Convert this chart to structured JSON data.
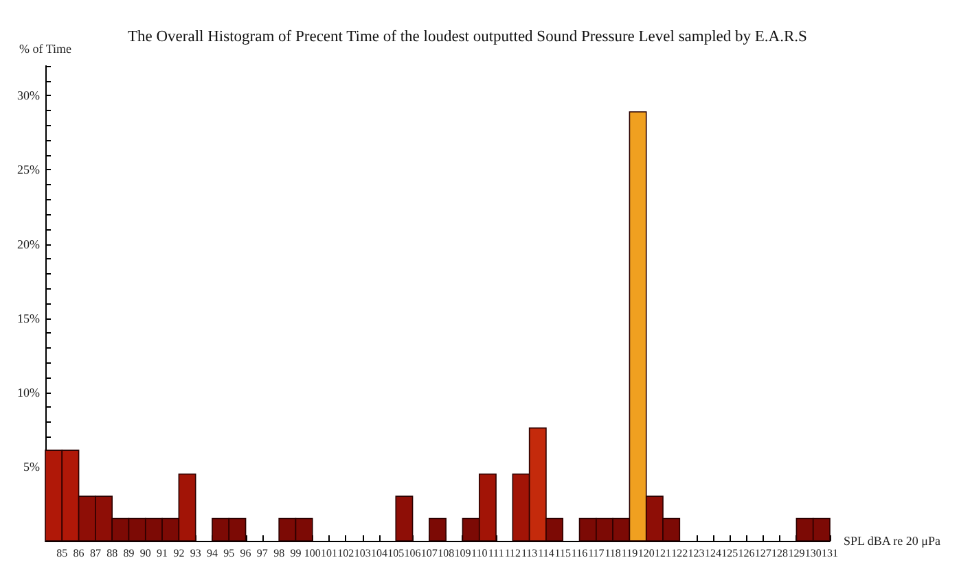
{
  "chart_data": {
    "type": "histogram",
    "title": "The Overall Histogram of Precent Time of the loudest outputted Sound Pressure Level sampled by E.A.R.S",
    "xlabel": "SPL dBA re 20 μPa",
    "ylabel": "% of Time",
    "bins": [
      84,
      85,
      86,
      87,
      88,
      89,
      90,
      91,
      92,
      93,
      94,
      95,
      96,
      97,
      98,
      99,
      100,
      101,
      102,
      103,
      104,
      105,
      106,
      107,
      108,
      109,
      110,
      111,
      112,
      113,
      114,
      115,
      116,
      117,
      118,
      119,
      120,
      121,
      122,
      123,
      124,
      125,
      126,
      127,
      128,
      129,
      130,
      131
    ],
    "values": [
      6.1,
      6.1,
      3,
      3,
      1.5,
      1.5,
      1.5,
      1.5,
      4.5,
      0,
      1.5,
      1.5,
      0,
      0,
      1.5,
      1.5,
      0,
      0,
      0,
      0,
      0,
      3,
      0,
      1.5,
      0,
      1.5,
      4.5,
      0,
      4.5,
      7.6,
      1.5,
      0,
      1.5,
      1.5,
      1.5,
      28.9,
      3,
      1.5,
      0,
      0,
      0,
      0,
      0,
      0,
      0,
      1.5,
      1.5
    ],
    "colors": [
      "#b01808",
      "#b01808",
      "#8e0e06",
      "#8e0e06",
      "#7c0a05",
      "#7c0a05",
      "#7c0a05",
      "#7c0a05",
      "#a21406",
      null,
      "#7c0a05",
      "#7c0a05",
      null,
      null,
      "#7c0a05",
      "#7c0a05",
      null,
      null,
      null,
      null,
      null,
      "#8e0e06",
      null,
      "#7c0a05",
      null,
      "#7c0a05",
      "#a21406",
      null,
      "#a21406",
      "#c42a0c",
      "#7c0a05",
      null,
      "#7c0a05",
      "#7c0a05",
      "#7c0a05",
      "#f0a020",
      "#8e0e06",
      "#7c0a05",
      null,
      null,
      null,
      null,
      null,
      null,
      null,
      "#7c0a05",
      "#7c0a05"
    ],
    "xlim": [
      84,
      131
    ],
    "xticks": [
      85,
      86,
      87,
      88,
      89,
      90,
      91,
      92,
      93,
      94,
      95,
      96,
      97,
      98,
      99,
      100,
      101,
      102,
      103,
      104,
      105,
      106,
      107,
      108,
      109,
      110,
      111,
      112,
      113,
      114,
      115,
      116,
      117,
      118,
      119,
      120,
      121,
      122,
      123,
      124,
      125,
      126,
      127,
      128,
      129,
      130,
      131
    ],
    "ylim": [
      0,
      32
    ],
    "yticks": [
      {
        "value": 0,
        "label": null
      },
      {
        "value": 1,
        "label": null
      },
      {
        "value": 2,
        "label": null
      },
      {
        "value": 3,
        "label": null
      },
      {
        "value": 4,
        "label": null
      },
      {
        "value": 5,
        "label": "5%"
      },
      {
        "value": 6,
        "label": null
      },
      {
        "value": 7,
        "label": null
      },
      {
        "value": 8,
        "label": null
      },
      {
        "value": 9,
        "label": null
      },
      {
        "value": 10,
        "label": "10%"
      },
      {
        "value": 11,
        "label": null
      },
      {
        "value": 12,
        "label": null
      },
      {
        "value": 13,
        "label": null
      },
      {
        "value": 14,
        "label": null
      },
      {
        "value": 15,
        "label": "15%"
      },
      {
        "value": 16,
        "label": null
      },
      {
        "value": 17,
        "label": null
      },
      {
        "value": 18,
        "label": null
      },
      {
        "value": 19,
        "label": null
      },
      {
        "value": 20,
        "label": "20%"
      },
      {
        "value": 21,
        "label": null
      },
      {
        "value": 22,
        "label": null
      },
      {
        "value": 23,
        "label": null
      },
      {
        "value": 24,
        "label": null
      },
      {
        "value": 25,
        "label": "25%"
      },
      {
        "value": 26,
        "label": null
      },
      {
        "value": 27,
        "label": null
      },
      {
        "value": 28,
        "label": null
      },
      {
        "value": 29,
        "label": null
      },
      {
        "value": 30,
        "label": "30%"
      },
      {
        "value": 31,
        "label": null
      },
      {
        "value": 32,
        "label": null
      }
    ],
    "grid": false
  }
}
